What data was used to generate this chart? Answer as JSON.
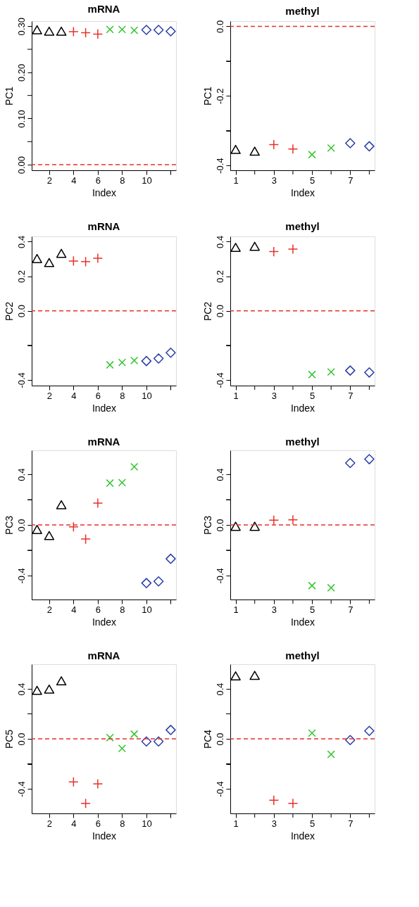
{
  "chart_data": [
    {
      "type": "scatter",
      "title": "mRNA",
      "xlabel": "Index",
      "ylabel": "PC1",
      "xlim": [
        0.56,
        12.44
      ],
      "xticks": [
        2,
        4,
        6,
        8,
        10,
        {
          "value": 12,
          "label": null
        }
      ],
      "ylim": [
        -0.012,
        0.311
      ],
      "yticks": [
        {
          "value": 0,
          "label": "0.00"
        },
        {
          "value": 0.05,
          "label": null
        },
        {
          "value": 0.1,
          "label": "0.10"
        },
        {
          "value": 0.15,
          "label": null
        },
        {
          "value": 0.2,
          "label": "0.20"
        },
        {
          "value": 0.25,
          "label": null
        },
        {
          "value": 0.3,
          "label": "0.30"
        }
      ],
      "ref_lines": [
        {
          "axis": "y",
          "value": 0,
          "color": "#e8312a",
          "line_style": "dashed"
        }
      ],
      "series": [
        {
          "color": "#000000",
          "marker": "triangle",
          "x": [
            1,
            2,
            3
          ],
          "values": [
            0.29,
            0.287,
            0.287
          ]
        },
        {
          "color": "#e8312a",
          "marker": "cross",
          "x": [
            4,
            5,
            6
          ],
          "values": [
            0.288,
            0.286,
            0.283
          ]
        },
        {
          "color": "#33c42f",
          "marker": "x",
          "x": [
            7,
            8,
            9
          ],
          "values": [
            0.293,
            0.293,
            0.291
          ]
        },
        {
          "color": "#2a3ea8",
          "marker": "diamond",
          "x": [
            10,
            11,
            12
          ],
          "values": [
            0.292,
            0.292,
            0.289
          ]
        }
      ]
    },
    {
      "type": "scatter",
      "title": "methyl",
      "xlabel": "Index",
      "ylabel": "PC1",
      "xlim": [
        0.72,
        8.28
      ],
      "xticks": [
        1,
        {
          "value": 2,
          "label": null
        },
        3,
        {
          "value": 4,
          "label": null
        },
        5,
        {
          "value": 6,
          "label": null
        },
        7,
        {
          "value": 8,
          "label": null
        }
      ],
      "ylim": [
        -0.414,
        0.015
      ],
      "yticks": [
        {
          "value": 0,
          "label": "0.0"
        },
        {
          "value": -0.1,
          "label": null
        },
        -0.2,
        {
          "value": -0.3,
          "label": null
        },
        -0.4
      ],
      "ref_lines": [
        {
          "axis": "y",
          "value": 0,
          "color": "#e8312a",
          "line_style": "dashed"
        }
      ],
      "series": [
        {
          "color": "#000000",
          "marker": "triangle",
          "x": [
            1,
            2
          ],
          "values": [
            -0.357,
            -0.362
          ]
        },
        {
          "color": "#e8312a",
          "marker": "cross",
          "x": [
            3,
            4
          ],
          "values": [
            -0.34,
            -0.353
          ]
        },
        {
          "color": "#33c42f",
          "marker": "x",
          "x": [
            5,
            6
          ],
          "values": [
            -0.369,
            -0.35
          ]
        },
        {
          "color": "#2a3ea8",
          "marker": "diamond",
          "x": [
            7,
            8
          ],
          "values": [
            -0.336,
            -0.345
          ]
        }
      ]
    },
    {
      "type": "scatter",
      "title": "mRNA",
      "xlabel": "Index",
      "ylabel": "PC2",
      "xlim": [
        0.56,
        12.44
      ],
      "xticks": [
        2,
        4,
        6,
        8,
        10,
        {
          "value": 12,
          "label": null
        }
      ],
      "ylim": [
        -0.433,
        0.43
      ],
      "yticks": [
        0.4,
        0.2,
        {
          "value": 0,
          "label": "0.0"
        },
        {
          "value": -0.2,
          "label": null
        },
        -0.4
      ],
      "ref_lines": [
        {
          "axis": "y",
          "value": 0,
          "color": "#e8312a",
          "line_style": "dashed"
        }
      ],
      "series": [
        {
          "color": "#000000",
          "marker": "triangle",
          "x": [
            1,
            2,
            3
          ],
          "values": [
            0.296,
            0.273,
            0.326
          ]
        },
        {
          "color": "#e8312a",
          "marker": "cross",
          "x": [
            4,
            5,
            6
          ],
          "values": [
            0.288,
            0.284,
            0.304
          ]
        },
        {
          "color": "#33c42f",
          "marker": "x",
          "x": [
            7,
            8,
            9
          ],
          "values": [
            -0.313,
            -0.299,
            -0.288
          ]
        },
        {
          "color": "#2a3ea8",
          "marker": "diamond",
          "x": [
            10,
            11,
            12
          ],
          "values": [
            -0.291,
            -0.276,
            -0.243
          ]
        }
      ]
    },
    {
      "type": "scatter",
      "title": "methyl",
      "xlabel": "Index",
      "ylabel": "PC2",
      "xlim": [
        0.72,
        8.28
      ],
      "xticks": [
        1,
        {
          "value": 2,
          "label": null
        },
        3,
        {
          "value": 4,
          "label": null
        },
        5,
        {
          "value": 6,
          "label": null
        },
        7,
        {
          "value": 8,
          "label": null
        }
      ],
      "ylim": [
        -0.433,
        0.43
      ],
      "yticks": [
        0.4,
        0.2,
        {
          "value": 0,
          "label": "0.0"
        },
        {
          "value": -0.2,
          "label": null
        },
        -0.4
      ],
      "ref_lines": [
        {
          "axis": "y",
          "value": 0,
          "color": "#e8312a",
          "line_style": "dashed"
        }
      ],
      "series": [
        {
          "color": "#000000",
          "marker": "triangle",
          "x": [
            1,
            2
          ],
          "values": [
            0.361,
            0.367
          ]
        },
        {
          "color": "#e8312a",
          "marker": "cross",
          "x": [
            3,
            4
          ],
          "values": [
            0.342,
            0.357
          ]
        },
        {
          "color": "#33c42f",
          "marker": "x",
          "x": [
            5,
            6
          ],
          "values": [
            -0.369,
            -0.354
          ]
        },
        {
          "color": "#2a3ea8",
          "marker": "diamond",
          "x": [
            7,
            8
          ],
          "values": [
            -0.346,
            -0.357
          ]
        }
      ]
    },
    {
      "type": "scatter",
      "title": "mRNA",
      "xlabel": "Index",
      "ylabel": "PC3",
      "xlim": [
        0.56,
        12.44
      ],
      "xticks": [
        2,
        4,
        6,
        8,
        10,
        {
          "value": 12,
          "label": null
        }
      ],
      "ylim": [
        -0.59,
        0.59
      ],
      "yticks": [
        0.4,
        {
          "value": 0.2,
          "label": null
        },
        {
          "value": 0,
          "label": "0.0"
        },
        {
          "value": -0.2,
          "label": null
        },
        -0.4
      ],
      "ref_lines": [
        {
          "axis": "y",
          "value": 0,
          "color": "#e8312a",
          "line_style": "dashed"
        }
      ],
      "series": [
        {
          "color": "#000000",
          "marker": "triangle",
          "x": [
            1,
            2,
            3
          ],
          "values": [
            -0.044,
            -0.092,
            0.152
          ]
        },
        {
          "color": "#e8312a",
          "marker": "cross",
          "x": [
            4,
            5,
            6
          ],
          "values": [
            -0.015,
            -0.112,
            0.173
          ]
        },
        {
          "color": "#33c42f",
          "marker": "x",
          "x": [
            7,
            8,
            9
          ],
          "values": [
            0.331,
            0.335,
            0.46
          ]
        },
        {
          "color": "#2a3ea8",
          "marker": "diamond",
          "x": [
            10,
            11,
            12
          ],
          "values": [
            -0.46,
            -0.447,
            -0.268
          ]
        }
      ]
    },
    {
      "type": "scatter",
      "title": "methyl",
      "xlabel": "Index",
      "ylabel": "PC3",
      "xlim": [
        0.72,
        8.28
      ],
      "xticks": [
        1,
        {
          "value": 2,
          "label": null
        },
        3,
        {
          "value": 4,
          "label": null
        },
        5,
        {
          "value": 6,
          "label": null
        },
        7,
        {
          "value": 8,
          "label": null
        }
      ],
      "ylim": [
        -0.59,
        0.59
      ],
      "yticks": [
        0.4,
        {
          "value": 0.2,
          "label": null
        },
        {
          "value": 0,
          "label": "0.0"
        },
        {
          "value": -0.2,
          "label": null
        },
        -0.4
      ],
      "ref_lines": [
        {
          "axis": "y",
          "value": 0,
          "color": "#e8312a",
          "line_style": "dashed"
        }
      ],
      "series": [
        {
          "color": "#000000",
          "marker": "triangle",
          "x": [
            1,
            2
          ],
          "values": [
            -0.019,
            -0.019
          ]
        },
        {
          "color": "#e8312a",
          "marker": "cross",
          "x": [
            3,
            4
          ],
          "values": [
            0.037,
            0.04
          ]
        },
        {
          "color": "#33c42f",
          "marker": "x",
          "x": [
            5,
            6
          ],
          "values": [
            -0.48,
            -0.497
          ]
        },
        {
          "color": "#2a3ea8",
          "marker": "diamond",
          "x": [
            7,
            8
          ],
          "values": [
            0.49,
            0.52
          ]
        }
      ]
    },
    {
      "type": "scatter",
      "title": "mRNA",
      "xlabel": "Index",
      "ylabel": "PC5",
      "xlim": [
        0.56,
        12.44
      ],
      "xticks": [
        2,
        4,
        6,
        8,
        10,
        {
          "value": 12,
          "label": null
        }
      ],
      "ylim": [
        -0.597,
        0.597
      ],
      "yticks": [
        0.4,
        {
          "value": 0.2,
          "label": null
        },
        {
          "value": 0,
          "label": "0.0"
        },
        {
          "value": -0.2,
          "label": null
        },
        -0.4
      ],
      "ref_lines": [
        {
          "axis": "y",
          "value": 0,
          "color": "#e8312a",
          "line_style": "dashed"
        }
      ],
      "series": [
        {
          "color": "#000000",
          "marker": "triangle",
          "x": [
            1,
            2,
            3
          ],
          "values": [
            0.38,
            0.39,
            0.456
          ]
        },
        {
          "color": "#e8312a",
          "marker": "cross",
          "x": [
            4,
            5,
            6
          ],
          "values": [
            -0.345,
            -0.517,
            -0.36
          ]
        },
        {
          "color": "#33c42f",
          "marker": "x",
          "x": [
            7,
            8,
            9
          ],
          "values": [
            0.01,
            -0.077,
            0.038
          ]
        },
        {
          "color": "#2a3ea8",
          "marker": "diamond",
          "x": [
            10,
            11,
            12
          ],
          "values": [
            -0.021,
            -0.021,
            0.071
          ]
        }
      ]
    },
    {
      "type": "scatter",
      "title": "methyl",
      "xlabel": "Index",
      "ylabel": "PC4",
      "xlim": [
        0.72,
        8.28
      ],
      "xticks": [
        1,
        {
          "value": 2,
          "label": null
        },
        3,
        {
          "value": 4,
          "label": null
        },
        5,
        {
          "value": 6,
          "label": null
        },
        7,
        {
          "value": 8,
          "label": null
        }
      ],
      "ylim": [
        -0.597,
        0.597
      ],
      "yticks": [
        0.4,
        {
          "value": 0.2,
          "label": null
        },
        {
          "value": 0,
          "label": "0.0"
        },
        {
          "value": -0.2,
          "label": null
        },
        -0.4
      ],
      "ref_lines": [
        {
          "axis": "y",
          "value": 0,
          "color": "#e8312a",
          "line_style": "dashed"
        }
      ],
      "series": [
        {
          "color": "#000000",
          "marker": "triangle",
          "x": [
            1,
            2
          ],
          "values": [
            0.496,
            0.5
          ]
        },
        {
          "color": "#e8312a",
          "marker": "cross",
          "x": [
            3,
            4
          ],
          "values": [
            -0.492,
            -0.517
          ]
        },
        {
          "color": "#33c42f",
          "marker": "x",
          "x": [
            5,
            6
          ],
          "values": [
            0.046,
            -0.124
          ]
        },
        {
          "color": "#2a3ea8",
          "marker": "diamond",
          "x": [
            7,
            8
          ],
          "values": [
            -0.01,
            0.063
          ]
        }
      ]
    }
  ]
}
